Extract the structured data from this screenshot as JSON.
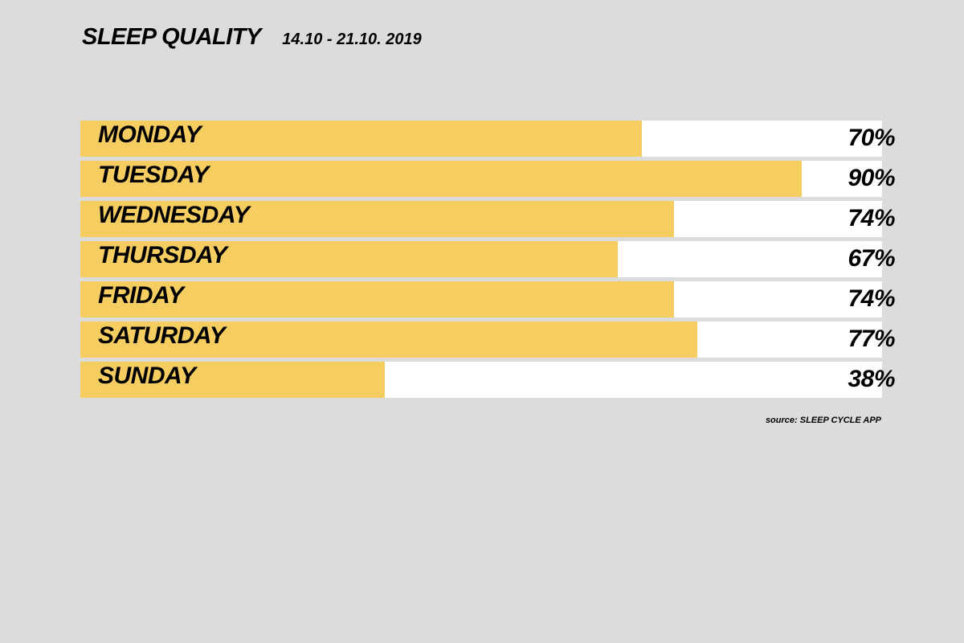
{
  "header": {
    "title": "SLEEP QUALITY",
    "date_range": "14.10 - 21.10. 2019"
  },
  "chart_data": {
    "type": "bar",
    "orientation": "horizontal",
    "title": "SLEEP QUALITY",
    "subtitle": "14.10 - 21.10. 2019",
    "categories": [
      "MONDAY",
      "TUESDAY",
      "WEDNESDAY",
      "THURSDAY",
      "FRIDAY",
      "SATURDAY",
      "SUNDAY"
    ],
    "values": [
      70,
      90,
      74,
      67,
      74,
      77,
      38
    ],
    "value_labels": [
      "70%",
      "90%",
      "74%",
      "67%",
      "74%",
      "77%",
      "38%"
    ],
    "xlim": [
      0,
      100
    ],
    "unit": "%",
    "grid": false,
    "legend": "none"
  },
  "footer": {
    "source": "source: SLEEP CYCLE APP"
  },
  "colors": {
    "background": "#dcdcdc",
    "bar": "#f5cd61",
    "track": "#ffffff",
    "text": "#000000"
  }
}
